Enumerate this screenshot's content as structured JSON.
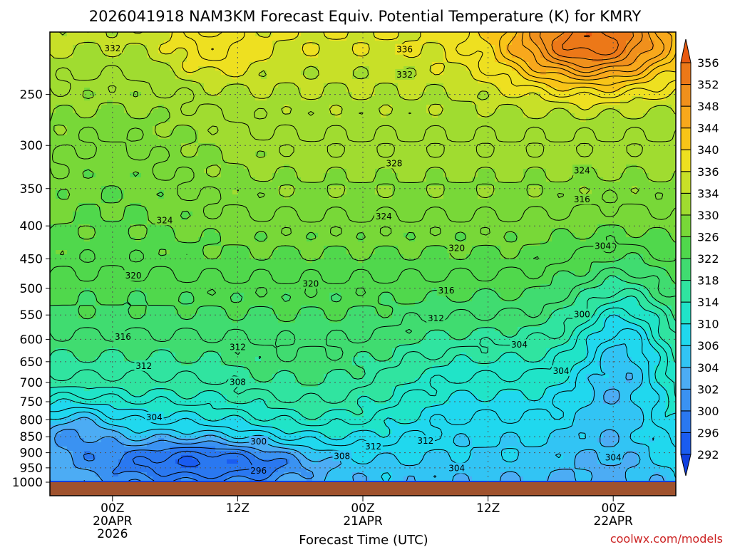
{
  "title": "2026041918 NAM3KM Forecast Equiv. Potential Temperature (K) for KMRY",
  "credit": "coolwx.com/models",
  "chart_data": {
    "type": "heatmap",
    "title": "2026041918 NAM3KM Forecast Equiv. Potential Temperature (K) for KMRY",
    "xlabel": "Forecast Time (UTC)",
    "ylabel": "",
    "x_ticks": [
      {
        "hour": 6,
        "lines": [
          "00Z",
          "20APR",
          "2026"
        ]
      },
      {
        "hour": 18,
        "lines": [
          "12Z"
        ]
      },
      {
        "hour": 30,
        "lines": [
          "00Z",
          "21APR"
        ]
      },
      {
        "hour": 42,
        "lines": [
          "12Z"
        ]
      },
      {
        "hour": 54,
        "lines": [
          "00Z",
          "22APR"
        ]
      }
    ],
    "xlim_hours": [
      0,
      60
    ],
    "y_ticks": [
      250,
      300,
      350,
      400,
      450,
      500,
      550,
      600,
      650,
      700,
      750,
      800,
      850,
      900,
      950,
      1000
    ],
    "ylim": [
      1000,
      200
    ],
    "y_scale": "log-pressure",
    "grid": true,
    "colorbar": {
      "levels": [
        292,
        296,
        300,
        302,
        304,
        306,
        310,
        314,
        318,
        322,
        326,
        330,
        334,
        336,
        340,
        344,
        348,
        352,
        356
      ],
      "colors": [
        "#1040e0",
        "#1a5cf0",
        "#2a78f0",
        "#3a92f2",
        "#4cacf4",
        "#32c4f4",
        "#20d8ee",
        "#20e4c8",
        "#30e4a0",
        "#40dc70",
        "#50d84c",
        "#78d838",
        "#a0dc30",
        "#c8e028",
        "#eee020",
        "#f8c418",
        "#f8a81c",
        "#f0901c",
        "#ec7818",
        "#e85a10"
      ]
    },
    "contour_labels": [
      {
        "value": "332",
        "hour": 6,
        "p": 212
      },
      {
        "value": "336",
        "hour": 34,
        "p": 213
      },
      {
        "value": "332",
        "hour": 34,
        "p": 233
      },
      {
        "value": "328",
        "hour": 33,
        "p": 320
      },
      {
        "value": "324",
        "hour": 51,
        "p": 328
      },
      {
        "value": "316",
        "hour": 51,
        "p": 364
      },
      {
        "value": "324",
        "hour": 11,
        "p": 392
      },
      {
        "value": "324",
        "hour": 32,
        "p": 387
      },
      {
        "value": "304",
        "hour": 53,
        "p": 430
      },
      {
        "value": "320",
        "hour": 39,
        "p": 433
      },
      {
        "value": "320",
        "hour": 8,
        "p": 478
      },
      {
        "value": "320",
        "hour": 25,
        "p": 492
      },
      {
        "value": "316",
        "hour": 38,
        "p": 504
      },
      {
        "value": "300",
        "hour": 51,
        "p": 549
      },
      {
        "value": "312",
        "hour": 37,
        "p": 557
      },
      {
        "value": "316",
        "hour": 7,
        "p": 595
      },
      {
        "value": "312",
        "hour": 18,
        "p": 617
      },
      {
        "value": "304",
        "hour": 45,
        "p": 612
      },
      {
        "value": "312",
        "hour": 9,
        "p": 660
      },
      {
        "value": "304",
        "hour": 49,
        "p": 672
      },
      {
        "value": "308",
        "hour": 18,
        "p": 699
      },
      {
        "value": "304",
        "hour": 10,
        "p": 793
      },
      {
        "value": "300",
        "hour": 20,
        "p": 865
      },
      {
        "value": "312",
        "hour": 31,
        "p": 880
      },
      {
        "value": "312",
        "hour": 36,
        "p": 863
      },
      {
        "value": "308",
        "hour": 28,
        "p": 911
      },
      {
        "value": "304",
        "hour": 54,
        "p": 916
      },
      {
        "value": "296",
        "hour": 20,
        "p": 960
      },
      {
        "value": "304",
        "hour": 39,
        "p": 952
      }
    ]
  }
}
